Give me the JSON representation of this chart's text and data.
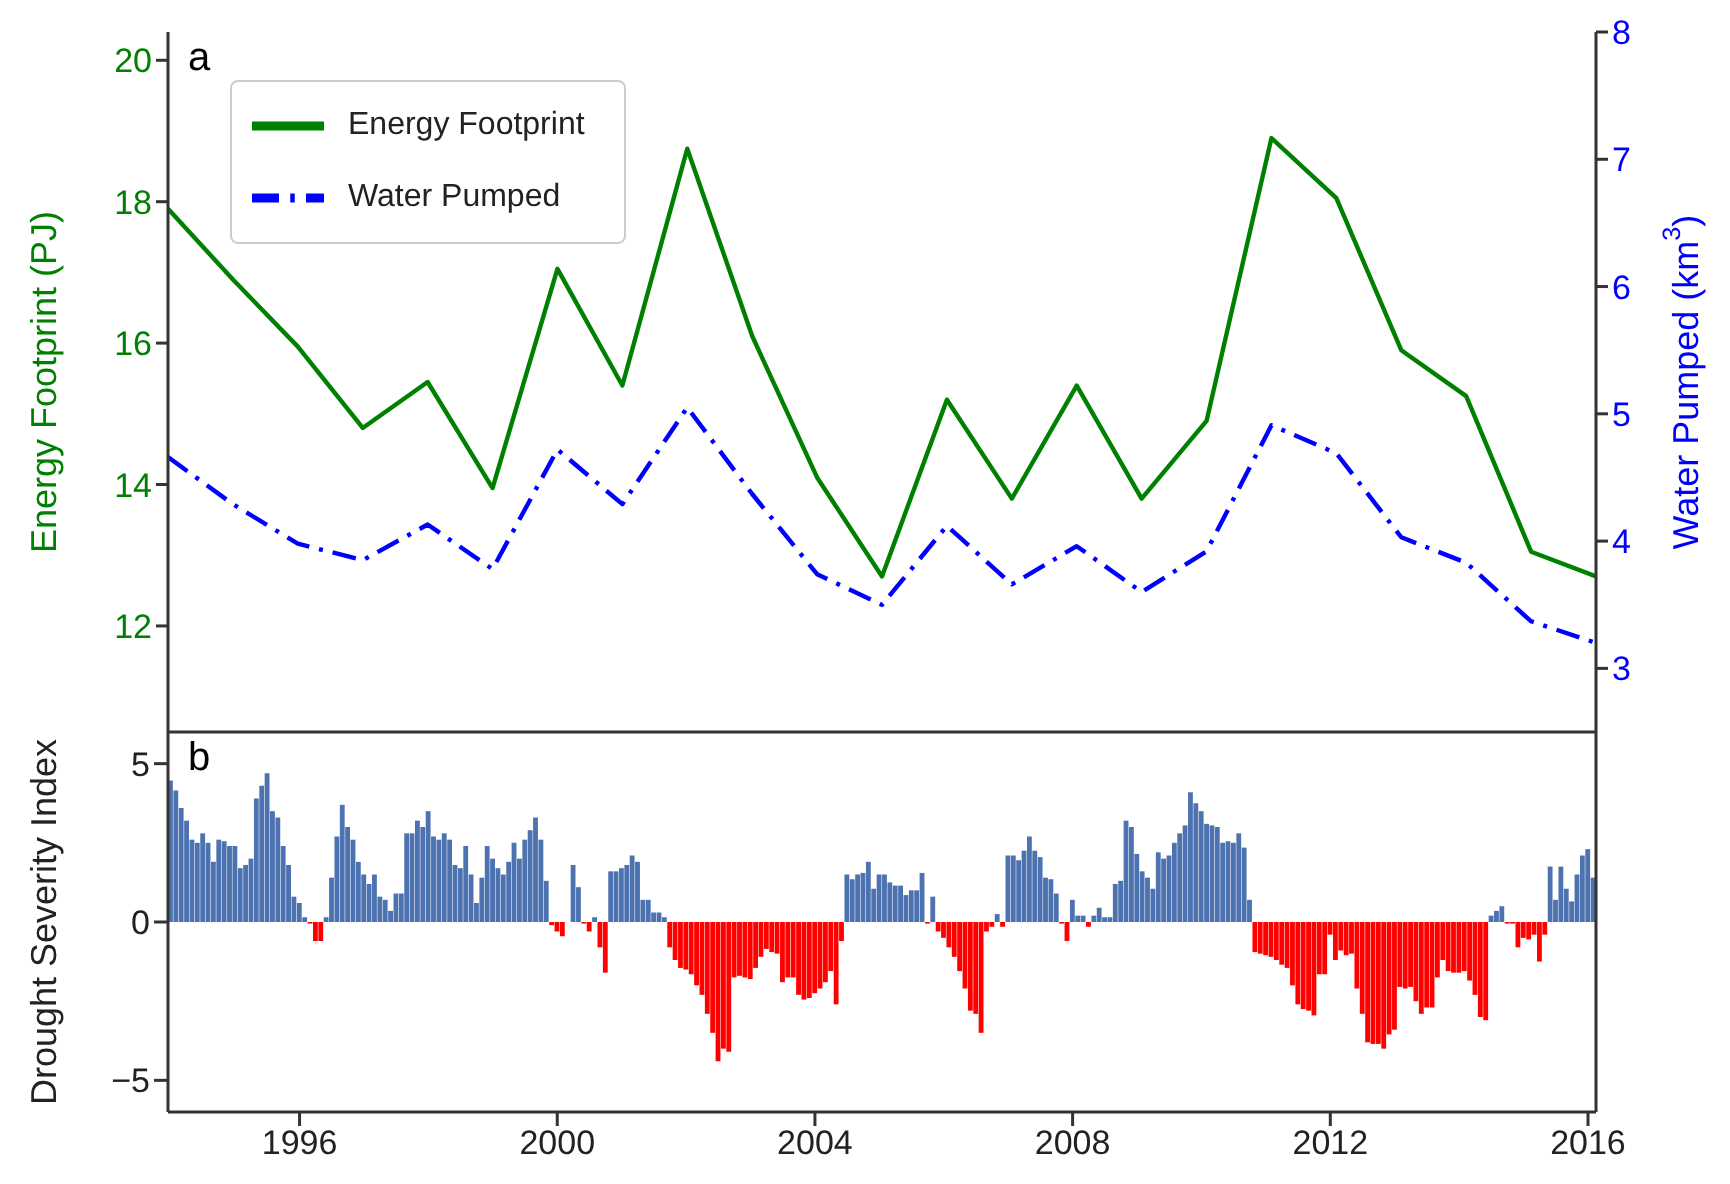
{
  "chart_data": [
    {
      "type": "line",
      "categories": [
        null,
        null,
        null,
        null,
        null,
        null,
        null,
        null,
        null,
        null,
        null,
        null,
        null,
        null,
        null,
        null,
        null,
        null,
        null,
        null,
        null,
        null,
        null
      ],
      "ylim": [
        10.5,
        20.4
      ],
      "yticks": [
        12,
        14,
        16,
        18,
        20
      ],
      "y2lim": [
        2.5,
        8
      ],
      "y2ticks": [
        3,
        4,
        5,
        6,
        7,
        8
      ],
      "ylabel": "Energy Footprint (PJ)",
      "y2label": "Water Pumped (km$^{3}$)",
      "legend": "top left",
      "tick_labels": "y",
      "annotations": [
        "a"
      ],
      "series": [
        {
          "name": "Energy Footprint",
          "color": "#008000",
          "line_style": "solid",
          "values": [
            17.9,
            16.9,
            15.95,
            14.8,
            15.45,
            13.95,
            17.05,
            15.4,
            18.75,
            16.1,
            14.1,
            12.7,
            15.2,
            13.8,
            15.4,
            13.8,
            14.9,
            18.9,
            18.05,
            15.9,
            15.25,
            13.05,
            12.7
          ]
        },
        {
          "name": "Water Pumped",
          "color": "#0000ff",
          "line_style": "dashdot",
          "axis": "y2",
          "values": [
            4.66,
            4.29,
            3.98,
            3.85,
            4.13,
            3.78,
            4.72,
            4.29,
            5.05,
            4.37,
            3.74,
            3.5,
            4.12,
            3.66,
            3.96,
            3.6,
            3.92,
            4.91,
            4.69,
            4.03,
            3.83,
            3.37,
            3.2
          ]
        }
      ]
    },
    {
      "type": "bar",
      "xlim": [
        "1993-12-16",
        "2016-02-16"
      ],
      "xticks": [
        "1996",
        "2000",
        "2004",
        "2008",
        "2012",
        "2016"
      ],
      "ylim": [
        -6,
        6
      ],
      "yticks": [
        -5,
        0,
        5
      ],
      "ylabel": "Drought Severity Index",
      "annotations": [
        "b"
      ],
      "x": [
        "1994-01",
        "1994-02",
        "1994-03",
        "1994-04",
        "1994-05",
        "1994-06",
        "1994-07",
        "1994-08",
        "1994-09",
        "1994-10",
        "1994-11",
        "1994-12",
        "1995-01",
        "1995-02",
        "1995-03",
        "1995-04",
        "1995-05",
        "1995-06",
        "1995-07",
        "1995-08",
        "1995-09",
        "1995-10",
        "1995-11",
        "1995-12",
        "1996-01",
        "1996-02",
        "1996-03",
        "1996-04",
        "1996-05",
        "1996-06",
        "1996-07",
        "1996-08",
        "1996-09",
        "1996-10",
        "1996-11",
        "1996-12",
        "1997-01",
        "1997-02",
        "1997-03",
        "1997-04",
        "1997-05",
        "1997-06",
        "1997-07",
        "1997-08",
        "1997-09",
        "1997-10",
        "1997-11",
        "1997-12",
        "1998-01",
        "1998-02",
        "1998-03",
        "1998-04",
        "1998-05",
        "1998-06",
        "1998-07",
        "1998-08",
        "1998-09",
        "1998-10",
        "1998-11",
        "1998-12",
        "1999-01",
        "1999-02",
        "1999-03",
        "1999-04",
        "1999-05",
        "1999-06",
        "1999-07",
        "1999-08",
        "1999-09",
        "1999-10",
        "1999-11",
        "1999-12",
        "2000-01",
        "2000-02",
        "2000-03",
        "2000-04",
        "2000-05",
        "2000-06",
        "2000-07",
        "2000-08",
        "2000-09",
        "2000-10",
        "2000-11",
        "2000-12",
        "2001-01",
        "2001-02",
        "2001-03",
        "2001-04",
        "2001-05",
        "2001-06",
        "2001-07",
        "2001-08",
        "2001-09",
        "2001-10",
        "2001-11",
        "2001-12",
        "2002-01",
        "2002-02",
        "2002-03",
        "2002-04",
        "2002-05",
        "2002-06",
        "2002-07",
        "2002-08",
        "2002-09",
        "2002-10",
        "2002-11",
        "2002-12",
        "2003-01",
        "2003-02",
        "2003-03",
        "2003-04",
        "2003-05",
        "2003-06",
        "2003-07",
        "2003-08",
        "2003-09",
        "2003-10",
        "2003-11",
        "2003-12",
        "2004-01",
        "2004-02",
        "2004-03",
        "2004-04",
        "2004-05",
        "2004-06",
        "2004-07",
        "2004-08",
        "2004-09",
        "2004-10",
        "2004-11",
        "2004-12",
        "2005-01",
        "2005-02",
        "2005-03",
        "2005-04",
        "2005-05",
        "2005-06",
        "2005-07",
        "2005-08",
        "2005-09",
        "2005-10",
        "2005-11",
        "2005-12",
        "2006-01",
        "2006-02",
        "2006-03",
        "2006-04",
        "2006-05",
        "2006-06",
        "2006-07",
        "2006-08",
        "2006-09",
        "2006-10",
        "2006-11",
        "2006-12",
        "2007-01",
        "2007-02",
        "2007-03",
        "2007-04",
        "2007-05",
        "2007-06",
        "2007-07",
        "2007-08",
        "2007-09",
        "2007-10",
        "2007-11",
        "2007-12",
        "2008-01",
        "2008-02",
        "2008-03",
        "2008-04",
        "2008-05",
        "2008-06",
        "2008-07",
        "2008-08",
        "2008-09",
        "2008-10",
        "2008-11",
        "2008-12",
        "2009-01",
        "2009-02",
        "2009-03",
        "2009-04",
        "2009-05",
        "2009-06",
        "2009-07",
        "2009-08",
        "2009-09",
        "2009-10",
        "2009-11",
        "2009-12",
        "2010-01",
        "2010-02",
        "2010-03",
        "2010-04",
        "2010-05",
        "2010-06",
        "2010-07",
        "2010-08",
        "2010-09",
        "2010-10",
        "2010-11",
        "2010-12",
        "2011-01",
        "2011-02",
        "2011-03",
        "2011-04",
        "2011-05",
        "2011-06",
        "2011-07",
        "2011-08",
        "2011-09",
        "2011-10",
        "2011-11",
        "2011-12",
        "2012-01",
        "2012-02",
        "2012-03",
        "2012-04",
        "2012-05",
        "2012-06",
        "2012-07",
        "2012-08",
        "2012-09",
        "2012-10",
        "2012-11",
        "2012-12",
        "2013-01",
        "2013-02",
        "2013-03",
        "2013-04",
        "2013-05",
        "2013-06",
        "2013-07",
        "2013-08",
        "2013-09",
        "2013-10",
        "2013-11",
        "2013-12",
        "2014-01",
        "2014-02",
        "2014-03",
        "2014-04",
        "2014-05",
        "2014-06",
        "2014-07",
        "2014-08",
        "2014-09",
        "2014-10",
        "2014-11",
        "2014-12",
        "2015-01",
        "2015-02",
        "2015-03",
        "2015-04",
        "2015-05",
        "2015-06",
        "2015-07",
        "2015-08",
        "2015-09",
        "2015-10",
        "2015-11",
        "2015-12",
        "2016-01",
        "2016-02"
      ],
      "values": [
        4.47,
        4.15,
        3.6,
        3.2,
        2.6,
        2.5,
        2.8,
        2.5,
        1.9,
        2.6,
        2.55,
        2.4,
        2.4,
        1.7,
        1.8,
        2.0,
        3.9,
        4.3,
        4.7,
        3.5,
        3.3,
        2.4,
        1.8,
        0.8,
        0.6,
        0.15,
        -0.05,
        -0.6,
        -0.6,
        0.15,
        1.4,
        2.7,
        3.7,
        3.0,
        2.6,
        1.9,
        1.5,
        1.2,
        1.5,
        0.8,
        0.7,
        0.35,
        0.9,
        0.9,
        2.8,
        2.8,
        3.2,
        3.0,
        3.5,
        2.7,
        2.6,
        2.8,
        2.6,
        1.8,
        1.7,
        2.4,
        1.5,
        0.6,
        1.4,
        2.4,
        2.0,
        1.7,
        1.5,
        1.9,
        2.5,
        2.0,
        2.6,
        2.9,
        3.3,
        2.6,
        1.3,
        -0.1,
        -0.3,
        -0.45,
        0,
        1.8,
        1.1,
        -0.05,
        -0.3,
        0.15,
        -0.8,
        -1.6,
        1.6,
        1.6,
        1.7,
        1.8,
        2.1,
        1.9,
        0.7,
        0.7,
        0.3,
        0.3,
        0.15,
        -0.8,
        -1.2,
        -1.45,
        -1.5,
        -1.65,
        -2.0,
        -2.3,
        -2.9,
        -3.5,
        -4.4,
        -4.0,
        -4.1,
        -1.75,
        -1.7,
        -1.75,
        -1.8,
        -1.45,
        -1.1,
        -0.85,
        -0.95,
        -1.0,
        -1.9,
        -1.75,
        -1.75,
        -2.3,
        -2.45,
        -2.4,
        -2.25,
        -2.1,
        -1.9,
        -1.55,
        -2.6,
        -0.6,
        1.5,
        1.35,
        1.5,
        1.55,
        1.9,
        1.05,
        1.5,
        1.5,
        1.25,
        1.15,
        1.15,
        0.85,
        1.0,
        1.0,
        1.55,
        -0.05,
        0.8,
        -0.3,
        -0.5,
        -0.8,
        -1.1,
        -1.55,
        -2.1,
        -2.8,
        -2.9,
        -3.5,
        -0.3,
        -0.15,
        0.25,
        -0.15,
        2.1,
        2.1,
        1.95,
        2.25,
        2.7,
        2.25,
        2.05,
        1.4,
        1.35,
        0.9,
        -0.05,
        -0.6,
        0.7,
        0.2,
        0.2,
        -0.15,
        0.2,
        0.45,
        0.15,
        0.15,
        1.2,
        1.3,
        3.2,
        3.0,
        2.15,
        1.6,
        1.4,
        1.05,
        2.2,
        2.0,
        2.1,
        2.5,
        2.8,
        3.05,
        4.1,
        3.75,
        3.5,
        3.1,
        3.05,
        3.0,
        2.5,
        2.55,
        2.5,
        2.8,
        2.35,
        0.7,
        -0.95,
        -1.0,
        -1.05,
        -1.1,
        -1.2,
        -1.35,
        -1.45,
        -2.0,
        -2.6,
        -2.75,
        -2.8,
        -2.95,
        -1.65,
        -1.65,
        -0.4,
        -1.2,
        -0.9,
        -1.05,
        -1.0,
        -2.1,
        -2.9,
        -3.8,
        -3.85,
        -3.85,
        -4.0,
        -3.55,
        -3.4,
        -2.05,
        -2.1,
        -2.05,
        -2.5,
        -2.9,
        -2.7,
        -2.7,
        -1.75,
        -1.2,
        -1.55,
        -1.6,
        -1.6,
        -1.55,
        -1.85,
        -2.3,
        -3.0,
        -3.1,
        0.2,
        0.35,
        0.5,
        -0.05,
        -0.05,
        -0.8,
        -0.5,
        -0.55,
        -0.4,
        -1.25,
        -0.4,
        1.75,
        0.7,
        1.75,
        1.05,
        0.65,
        1.5,
        2.1,
        2.3,
        1.4
      ],
      "colors": [
        "#4c72b0",
        "#4c72b0",
        "#4c72b0",
        "#4c72b0",
        "#4c72b0",
        "#4c72b0",
        "#4c72b0",
        "#4c72b0",
        "#4c72b0",
        "#4c72b0",
        "#4c72b0",
        "#4c72b0",
        "#4c72b0",
        "#4c72b0",
        "#4c72b0",
        "#4c72b0",
        "#4c72b0",
        "#4c72b0",
        "#4c72b0",
        "#4c72b0",
        "#4c72b0",
        "#4c72b0",
        "#4c72b0",
        "#4c72b0",
        "#4c72b0",
        "#4c72b0",
        "#ff0000",
        "#ff0000",
        "#ff0000",
        "#4c72b0",
        "#4c72b0",
        "#4c72b0",
        "#4c72b0",
        "#4c72b0",
        "#4c72b0",
        "#4c72b0",
        "#4c72b0",
        "#4c72b0",
        "#4c72b0",
        "#4c72b0",
        "#4c72b0",
        "#4c72b0",
        "#4c72b0",
        "#4c72b0",
        "#4c72b0",
        "#4c72b0",
        "#4c72b0",
        "#4c72b0",
        "#4c72b0",
        "#4c72b0",
        "#4c72b0",
        "#4c72b0",
        "#4c72b0",
        "#4c72b0",
        "#4c72b0",
        "#4c72b0",
        "#4c72b0",
        "#4c72b0",
        "#4c72b0",
        "#4c72b0",
        "#4c72b0",
        "#4c72b0",
        "#4c72b0",
        "#4c72b0",
        "#4c72b0",
        "#4c72b0",
        "#4c72b0",
        "#4c72b0",
        "#4c72b0",
        "#4c72b0",
        "#4c72b0",
        "#ff0000",
        "#ff0000",
        "#ff0000",
        "#4c72b0",
        "#4c72b0",
        "#4c72b0",
        "#ff0000",
        "#ff0000",
        "#4c72b0",
        "#ff0000",
        "#ff0000",
        "#4c72b0",
        "#4c72b0",
        "#4c72b0",
        "#4c72b0",
        "#4c72b0",
        "#4c72b0",
        "#4c72b0",
        "#4c72b0",
        "#4c72b0",
        "#4c72b0",
        "#4c72b0",
        "#ff0000",
        "#ff0000",
        "#ff0000",
        "#ff0000",
        "#ff0000",
        "#ff0000",
        "#ff0000",
        "#ff0000",
        "#ff0000",
        "#ff0000",
        "#ff0000",
        "#ff0000",
        "#ff0000",
        "#ff0000",
        "#ff0000",
        "#ff0000",
        "#ff0000",
        "#ff0000",
        "#ff0000",
        "#ff0000",
        "#ff0000",
        "#ff0000",
        "#ff0000",
        "#ff0000",
        "#ff0000",
        "#ff0000",
        "#ff0000",
        "#ff0000",
        "#ff0000",
        "#ff0000",
        "#ff0000",
        "#ff0000",
        "#ff0000",
        "#4c72b0",
        "#4c72b0",
        "#4c72b0",
        "#4c72b0",
        "#4c72b0",
        "#4c72b0",
        "#4c72b0",
        "#4c72b0",
        "#4c72b0",
        "#4c72b0",
        "#4c72b0",
        "#4c72b0",
        "#4c72b0",
        "#4c72b0",
        "#4c72b0",
        "#ff0000",
        "#4c72b0",
        "#ff0000",
        "#ff0000",
        "#ff0000",
        "#ff0000",
        "#ff0000",
        "#ff0000",
        "#ff0000",
        "#ff0000",
        "#ff0000",
        "#ff0000",
        "#ff0000",
        "#4c72b0",
        "#ff0000",
        "#4c72b0",
        "#4c72b0",
        "#4c72b0",
        "#4c72b0",
        "#4c72b0",
        "#4c72b0",
        "#4c72b0",
        "#4c72b0",
        "#4c72b0",
        "#4c72b0",
        "#ff0000",
        "#ff0000",
        "#4c72b0",
        "#4c72b0",
        "#4c72b0",
        "#ff0000",
        "#4c72b0",
        "#4c72b0",
        "#4c72b0",
        "#4c72b0",
        "#4c72b0",
        "#4c72b0",
        "#4c72b0",
        "#4c72b0",
        "#4c72b0",
        "#4c72b0",
        "#4c72b0",
        "#4c72b0",
        "#4c72b0",
        "#4c72b0",
        "#4c72b0",
        "#4c72b0",
        "#4c72b0",
        "#4c72b0",
        "#4c72b0",
        "#4c72b0",
        "#4c72b0",
        "#4c72b0",
        "#4c72b0",
        "#4c72b0",
        "#4c72b0",
        "#4c72b0",
        "#4c72b0",
        "#4c72b0",
        "#4c72b0",
        "#4c72b0",
        "#ff0000",
        "#ff0000",
        "#ff0000",
        "#ff0000",
        "#ff0000",
        "#ff0000",
        "#ff0000",
        "#ff0000",
        "#ff0000",
        "#ff0000",
        "#ff0000",
        "#ff0000",
        "#ff0000",
        "#ff0000",
        "#ff0000",
        "#ff0000",
        "#ff0000",
        "#ff0000",
        "#ff0000",
        "#ff0000",
        "#ff0000",
        "#ff0000",
        "#ff0000",
        "#ff0000",
        "#ff0000",
        "#ff0000",
        "#ff0000",
        "#ff0000",
        "#ff0000",
        "#ff0000",
        "#ff0000",
        "#ff0000",
        "#ff0000",
        "#ff0000",
        "#ff0000",
        "#ff0000",
        "#ff0000",
        "#ff0000",
        "#ff0000",
        "#ff0000",
        "#ff0000",
        "#ff0000",
        "#ff0000",
        "#ff0000",
        "#4c72b0",
        "#4c72b0",
        "#4c72b0",
        "#ff0000",
        "#ff0000",
        "#ff0000",
        "#ff0000",
        "#ff0000",
        "#ff0000",
        "#ff0000",
        "#ff0000",
        "#4c72b0",
        "#4c72b0",
        "#4c72b0",
        "#4c72b0",
        "#4c72b0",
        "#4c72b0",
        "#4c72b0",
        "#4c72b0",
        "#4c72b0"
      ]
    }
  ]
}
